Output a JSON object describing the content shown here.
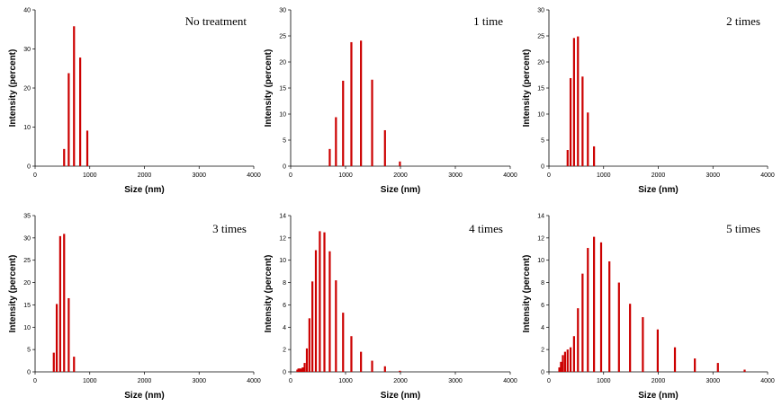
{
  "colors": {
    "bar": "#cc0000",
    "axis": "#000000",
    "background": "#ffffff"
  },
  "chart_data": [
    {
      "type": "bar",
      "annotation": "No treatment",
      "xlabel": "Size (nm)",
      "ylabel": "Intensity (percent)",
      "xlim": [
        0,
        4000
      ],
      "ylim": [
        0,
        40
      ],
      "xticks": [
        "0",
        "1000",
        "2000",
        "3000",
        "4000"
      ],
      "yticks": [
        "0",
        "10",
        "20",
        "30",
        "40"
      ],
      "x": [
        531,
        615,
        712,
        825,
        955
      ],
      "values": [
        4.4,
        23.8,
        35.8,
        27.8,
        9.1
      ],
      "grid": false,
      "legend": "none"
    },
    {
      "type": "bar",
      "annotation": "1 time",
      "xlabel": "Size (nm)",
      "ylabel": "Intensity (percent)",
      "xlim": [
        0,
        4000
      ],
      "ylim": [
        0,
        30
      ],
      "xticks": [
        "0",
        "1000",
        "2000",
        "3000",
        "4000"
      ],
      "yticks": [
        "0",
        "5",
        "10",
        "15",
        "20",
        "25",
        "30"
      ],
      "x": [
        712,
        825,
        955,
        1106,
        1281,
        1484,
        1718,
        1990
      ],
      "values": [
        3.3,
        9.4,
        16.4,
        23.8,
        24.1,
        16.6,
        6.9,
        0.9
      ],
      "grid": false,
      "legend": "none"
    },
    {
      "type": "bar",
      "annotation": "2 times",
      "xlabel": "Size (nm)",
      "ylabel": "Intensity (percent)",
      "xlim": [
        0,
        4000
      ],
      "ylim": [
        0,
        30
      ],
      "xticks": [
        "0",
        "1000",
        "2000",
        "3000",
        "4000"
      ],
      "yticks": [
        "0",
        "5",
        "10",
        "15",
        "20",
        "25",
        "30"
      ],
      "x": [
        342,
        396,
        459,
        531,
        615,
        712,
        825
      ],
      "values": [
        3.1,
        16.9,
        24.6,
        24.9,
        17.2,
        10.3,
        3.8
      ],
      "grid": false,
      "legend": "none"
    },
    {
      "type": "bar",
      "annotation": "3 times",
      "xlabel": "Size (nm)",
      "ylabel": "Intensity (percent)",
      "xlim": [
        0,
        4000
      ],
      "ylim": [
        0,
        35
      ],
      "xticks": [
        "0",
        "1000",
        "2000",
        "3000",
        "4000"
      ],
      "yticks": [
        "0",
        "5",
        "10",
        "15",
        "20",
        "25",
        "30",
        "35"
      ],
      "x": [
        342,
        396,
        459,
        531,
        615,
        712
      ],
      "values": [
        4.3,
        15.2,
        30.4,
        30.9,
        16.5,
        3.4
      ],
      "grid": false,
      "legend": "none"
    },
    {
      "type": "bar",
      "annotation": "4 times",
      "xlabel": "Size (nm)",
      "ylabel": "Intensity (percent)",
      "xlim": [
        0,
        4000
      ],
      "ylim": [
        0,
        14
      ],
      "xticks": [
        "0",
        "1000",
        "2000",
        "3000",
        "4000"
      ],
      "yticks": [
        "0",
        "2",
        "4",
        "6",
        "8",
        "10",
        "12",
        "14"
      ],
      "x": [
        122,
        142,
        164,
        190,
        220,
        255,
        295,
        342,
        396,
        459,
        531,
        615,
        712,
        825,
        955,
        1106,
        1281,
        1484,
        1718,
        1990
      ],
      "values": [
        0.2,
        0.3,
        0.3,
        0.3,
        0.4,
        0.8,
        2.1,
        4.8,
        8.1,
        10.9,
        12.6,
        12.5,
        10.8,
        8.2,
        5.3,
        3.2,
        1.8,
        1.0,
        0.5,
        0.1
      ],
      "grid": false,
      "legend": "none"
    },
    {
      "type": "bar",
      "annotation": "5 times",
      "xlabel": "Size (nm)",
      "ylabel": "Intensity (percent)",
      "xlim": [
        0,
        4000
      ],
      "ylim": [
        0,
        14
      ],
      "xticks": [
        "0",
        "1000",
        "2000",
        "3000",
        "4000"
      ],
      "yticks": [
        "0",
        "2",
        "4",
        "6",
        "8",
        "10",
        "12",
        "14"
      ],
      "x": [
        190,
        220,
        255,
        295,
        342,
        396,
        459,
        531,
        615,
        712,
        825,
        955,
        1106,
        1281,
        1484,
        1718,
        1990,
        2305,
        2669,
        3091,
        3580
      ],
      "values": [
        0.4,
        0.9,
        1.5,
        1.8,
        2.0,
        2.2,
        3.2,
        5.7,
        8.8,
        11.1,
        12.1,
        11.6,
        9.9,
        8.0,
        6.1,
        4.9,
        3.8,
        2.2,
        1.2,
        0.8,
        0.2
      ],
      "grid": false,
      "legend": "none"
    }
  ]
}
